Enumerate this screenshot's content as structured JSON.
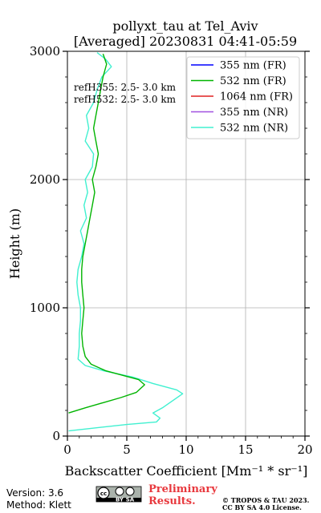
{
  "chart_data": {
    "type": "line",
    "title": "pollyxt_tau at Tel_Aviv",
    "subtitle": "[Averaged] 20230831 04:41-05:59",
    "xlabel": "Backscatter Coefficient [Mm⁻¹ * sr⁻¹]",
    "ylabel": "Height (m)",
    "xlim": [
      0,
      20
    ],
    "ylim": [
      0,
      3000
    ],
    "xticks": [
      "0",
      "5",
      "10",
      "15",
      "20"
    ],
    "yticks": [
      "0",
      "1000",
      "2000",
      "3000"
    ],
    "grid": true,
    "legend_position": "top-right",
    "annotations": [
      "refH355:  2.5- 3.0 km",
      "refH532:  2.5- 3.0 km"
    ],
    "series": [
      {
        "name": "355 nm (FR)",
        "color": "#0000ff",
        "points": []
      },
      {
        "name": "532 nm (FR)",
        "color": "#00b400",
        "points": [
          [
            0.1,
            180
          ],
          [
            1.5,
            220
          ],
          [
            3.0,
            260
          ],
          [
            4.5,
            300
          ],
          [
            5.8,
            340
          ],
          [
            6.5,
            400
          ],
          [
            6.0,
            440
          ],
          [
            4.8,
            470
          ],
          [
            3.2,
            510
          ],
          [
            2.0,
            560
          ],
          [
            1.5,
            620
          ],
          [
            1.3,
            700
          ],
          [
            1.2,
            800
          ],
          [
            1.3,
            900
          ],
          [
            1.4,
            1000
          ],
          [
            1.3,
            1100
          ],
          [
            1.2,
            1200
          ],
          [
            1.2,
            1300
          ],
          [
            1.3,
            1400
          ],
          [
            1.5,
            1500
          ],
          [
            1.7,
            1600
          ],
          [
            1.9,
            1700
          ],
          [
            2.1,
            1800
          ],
          [
            2.3,
            1900
          ],
          [
            2.1,
            2000
          ],
          [
            2.4,
            2100
          ],
          [
            2.6,
            2200
          ],
          [
            2.4,
            2300
          ],
          [
            2.2,
            2400
          ],
          [
            2.4,
            2500
          ],
          [
            2.6,
            2600
          ],
          [
            2.8,
            2700
          ],
          [
            3.0,
            2800
          ],
          [
            3.3,
            2900
          ],
          [
            3.0,
            2980
          ]
        ]
      },
      {
        "name": "1064 nm (FR)",
        "color": "#e02020",
        "points": []
      },
      {
        "name": "355 nm (NR)",
        "color": "#a050e0",
        "points": []
      },
      {
        "name": "532 nm (NR)",
        "color": "#40f0d0",
        "points": [
          [
            0.1,
            40
          ],
          [
            2.0,
            60
          ],
          [
            5.0,
            90
          ],
          [
            7.5,
            110
          ],
          [
            7.8,
            140
          ],
          [
            7.2,
            180
          ],
          [
            8.0,
            220
          ],
          [
            9.7,
            330
          ],
          [
            9.2,
            360
          ],
          [
            7.2,
            410
          ],
          [
            5.5,
            460
          ],
          [
            3.0,
            510
          ],
          [
            1.5,
            550
          ],
          [
            0.9,
            600
          ],
          [
            1.0,
            700
          ],
          [
            1.0,
            800
          ],
          [
            1.1,
            900
          ],
          [
            1.1,
            1000
          ],
          [
            0.9,
            1100
          ],
          [
            0.8,
            1200
          ],
          [
            0.9,
            1300
          ],
          [
            1.2,
            1400
          ],
          [
            1.4,
            1500
          ],
          [
            1.1,
            1600
          ],
          [
            1.6,
            1700
          ],
          [
            1.4,
            1800
          ],
          [
            1.7,
            1900
          ],
          [
            1.5,
            2000
          ],
          [
            2.1,
            2100
          ],
          [
            2.2,
            2200
          ],
          [
            1.5,
            2300
          ],
          [
            1.8,
            2400
          ],
          [
            1.6,
            2500
          ],
          [
            2.2,
            2600
          ],
          [
            2.5,
            2700
          ],
          [
            2.9,
            2800
          ],
          [
            3.7,
            2880
          ],
          [
            3.2,
            2940
          ],
          [
            2.5,
            2990
          ]
        ]
      }
    ]
  },
  "footer": {
    "version": "Version: 3.6",
    "method": "Method: Klett",
    "preliminary_line1": "Preliminary",
    "preliminary_line2": "Results.",
    "copyright_line1": "© TROPOS & TAU 2023.",
    "copyright_line2": "CC BY SA 4.0 License.",
    "cc_by": "BY",
    "cc_sa": "SA"
  }
}
